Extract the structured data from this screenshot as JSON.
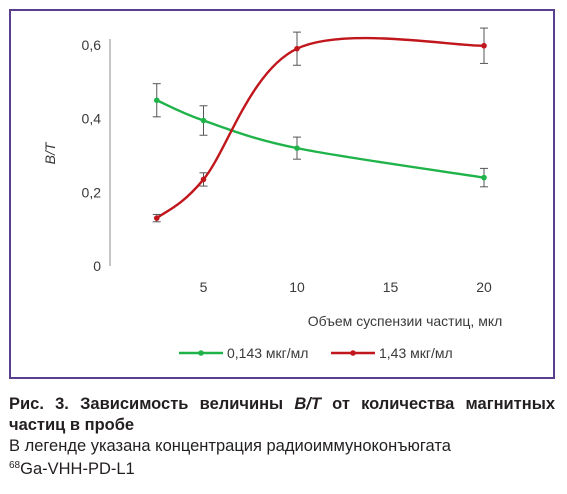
{
  "chart_data": {
    "type": "line",
    "smooth": true,
    "ylabel": "B/T",
    "xlabel": "Объем суспензии частиц, мкл",
    "xlim": [
      0,
      20
    ],
    "ylim": [
      0,
      0.6
    ],
    "xticks": [
      5,
      10,
      15,
      20
    ],
    "xtick_labels": [
      "5",
      "10",
      "15",
      "20"
    ],
    "yticks": [
      0,
      0.2,
      0.4,
      0.6
    ],
    "ytick_labels": [
      "0",
      "0,2",
      "0,4",
      "0,6"
    ],
    "grid": false,
    "legend_position": "bottom",
    "series": [
      {
        "name": "0,143 мкг/мл",
        "color": "#1fb34a",
        "x": [
          2.5,
          5,
          10,
          20
        ],
        "y": [
          0.45,
          0.395,
          0.32,
          0.24
        ],
        "err": [
          0.045,
          0.04,
          0.03,
          0.025
        ]
      },
      {
        "name": "1,43 мкг/мл",
        "color": "#c0161c",
        "x": [
          2.5,
          5,
          10,
          20
        ],
        "y": [
          0.13,
          0.235,
          0.59,
          0.598
        ],
        "err": [
          0.01,
          0.018,
          0.045,
          0.048
        ]
      }
    ]
  },
  "caption": {
    "title_prefix": "Рис. 3. Зависимость величины ",
    "title_italic": "B/T",
    "title_suffix": " от количества магнитных частиц в пробе",
    "note_line1": "В легенде указана концентрация радиоиммуноконъюгата",
    "note_sup": "68",
    "note_line2": "Ga-VHH-PD-L1"
  }
}
